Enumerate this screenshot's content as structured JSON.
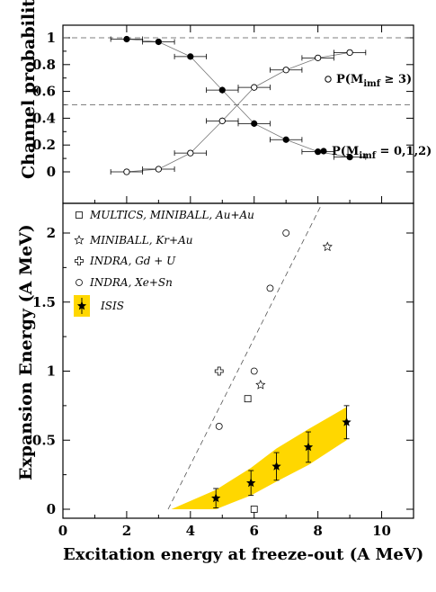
{
  "chart_data": [
    {
      "type": "scatter",
      "ylabel": "Channel probability",
      "xlim": [
        0,
        11
      ],
      "ylim": [
        0,
        1.05
      ],
      "yticks": [
        "0",
        "0.2",
        "0.4",
        "0.6",
        "0.8",
        "1"
      ],
      "reference_lines_y": [
        1.0,
        0.5
      ],
      "series": [
        {
          "name": "P(M_imf ≥ 3)",
          "legend_label": "P(M",
          "legend_sub": "imf",
          "legend_tail": " ≥ 3)",
          "marker": "open-circle",
          "x": [
            2,
            3,
            4,
            5,
            6,
            7,
            8,
            9
          ],
          "y": [
            0.0,
            0.02,
            0.14,
            0.38,
            0.63,
            0.76,
            0.85,
            0.89
          ],
          "xerr": [
            0.5,
            0.5,
            0.5,
            0.5,
            0.5,
            0.5,
            0.5,
            0.5
          ],
          "yerr": [
            0.0,
            0.01,
            0.015,
            0.025,
            0.025,
            0.02,
            0.015,
            0.015
          ]
        },
        {
          "name": "P(M_imf = 0,1,2)",
          "legend_label": "P(M",
          "legend_sub": "imf",
          "legend_tail": " = 0,1,2)",
          "marker": "filled-circle",
          "x": [
            2,
            3,
            4,
            5,
            6,
            7,
            8,
            9
          ],
          "y": [
            0.99,
            0.97,
            0.86,
            0.61,
            0.36,
            0.24,
            0.15,
            0.11
          ],
          "xerr": [
            0.5,
            0.5,
            0.5,
            0.5,
            0.5,
            0.5,
            0.5,
            0.5
          ],
          "yerr": [
            0.0,
            0.01,
            0.015,
            0.025,
            0.025,
            0.02,
            0.015,
            0.015
          ]
        }
      ]
    },
    {
      "type": "scatter",
      "ylabel": "Expansion Energy (A MeV)",
      "xlabel": "Excitation energy at freeze-out (A MeV)",
      "xlim": [
        0,
        11
      ],
      "ylim": [
        -0.05,
        2.2
      ],
      "xticks": [
        "0",
        "2",
        "4",
        "6",
        "8",
        "10"
      ],
      "yticks": [
        "0",
        "0.5",
        "1",
        "1.5",
        "2"
      ],
      "series": [
        {
          "name": "MULTICS, MINIBALL, Au+Au",
          "marker": "open-square",
          "x": [
            5.8,
            6.0
          ],
          "y": [
            0.8,
            0.0
          ]
        },
        {
          "name": "MINIBALL, Kr+Au",
          "marker": "open-star",
          "x": [
            6.2,
            8.3
          ],
          "y": [
            0.9,
            1.9
          ]
        },
        {
          "name": "INDRA, Gd + U",
          "marker": "open-cross",
          "x": [
            4.9
          ],
          "y": [
            1.0
          ]
        },
        {
          "name": "INDRA, Xe+Sn",
          "marker": "open-circle",
          "x": [
            4.9,
            6.0,
            6.5,
            7.0
          ],
          "y": [
            0.6,
            1.0,
            1.6,
            2.0
          ]
        },
        {
          "name": "ISIS",
          "marker": "filled-star",
          "x": [
            4.8,
            5.9,
            6.7,
            7.7,
            8.9
          ],
          "y": [
            0.08,
            0.19,
            0.31,
            0.45,
            0.63
          ],
          "yerr": [
            0.07,
            0.09,
            0.1,
            0.11,
            0.12
          ],
          "band_upper": [
            0.14,
            0.3,
            0.44,
            0.58,
            0.74
          ],
          "band_lower": [
            0.0,
            0.1,
            0.2,
            0.32,
            0.5
          ]
        }
      ],
      "trend_line": {
        "style": "dashed",
        "x": [
          3.3,
          8.1
        ],
        "y": [
          0.0,
          2.2
        ]
      },
      "band_color": "#FFD700"
    }
  ]
}
